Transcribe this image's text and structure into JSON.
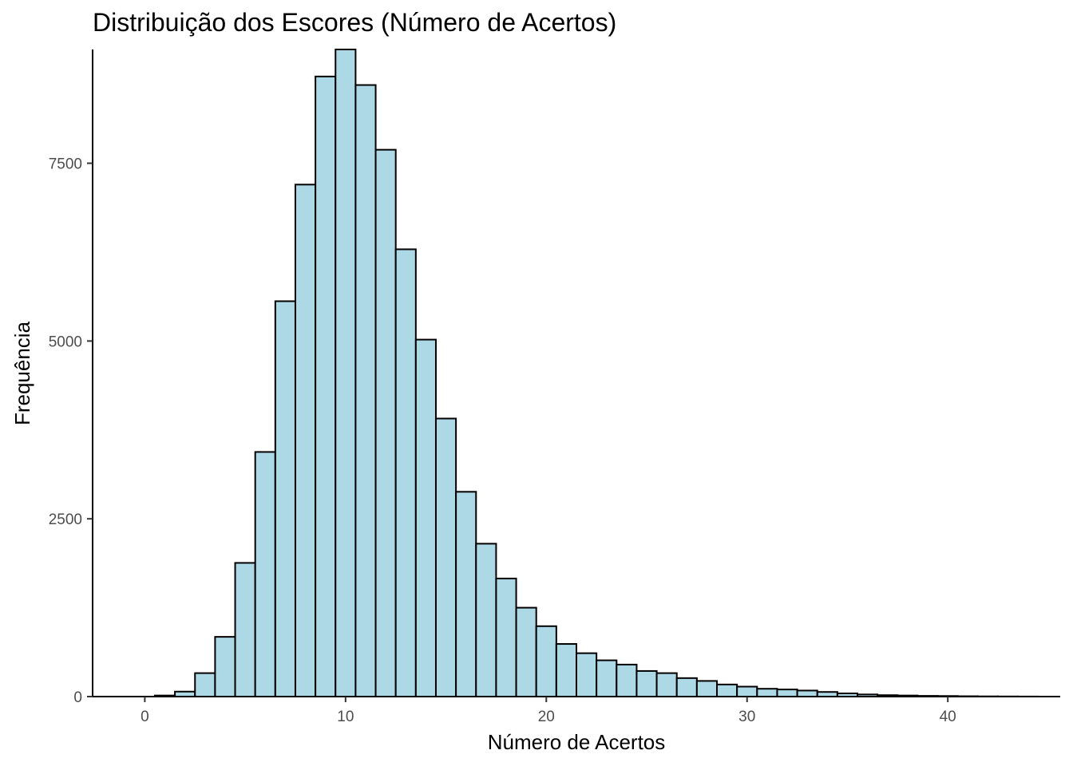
{
  "chart_data": {
    "type": "bar",
    "title": "Distribuição dos Escores (Número de Acertos)",
    "xlabel": "Número de Acertos",
    "ylabel": "Frequência",
    "x_ticks": [
      0,
      10,
      20,
      30,
      40
    ],
    "y_ticks": [
      0,
      2500,
      5000,
      7500
    ],
    "xlim": [
      -2.6,
      45.6
    ],
    "ylim": [
      0,
      9100
    ],
    "bin_width": 1,
    "bar_fill": "#add8e6",
    "bar_stroke": "#000000",
    "grid": false,
    "categories": [
      0,
      1,
      2,
      3,
      4,
      5,
      6,
      7,
      8,
      9,
      10,
      11,
      12,
      13,
      14,
      15,
      16,
      17,
      18,
      19,
      20,
      21,
      22,
      23,
      24,
      25,
      26,
      27,
      28,
      29,
      30,
      31,
      32,
      33,
      34,
      35,
      36,
      37,
      38,
      39,
      40,
      41,
      42,
      43,
      44
    ],
    "values": [
      0,
      15,
      70,
      330,
      840,
      1880,
      3440,
      5560,
      7200,
      8720,
      9100,
      8600,
      7690,
      6290,
      5020,
      3910,
      2880,
      2150,
      1660,
      1250,
      990,
      740,
      610,
      510,
      450,
      360,
      330,
      260,
      220,
      170,
      140,
      110,
      100,
      85,
      65,
      45,
      30,
      20,
      15,
      10,
      8,
      5,
      3,
      2,
      1
    ]
  }
}
